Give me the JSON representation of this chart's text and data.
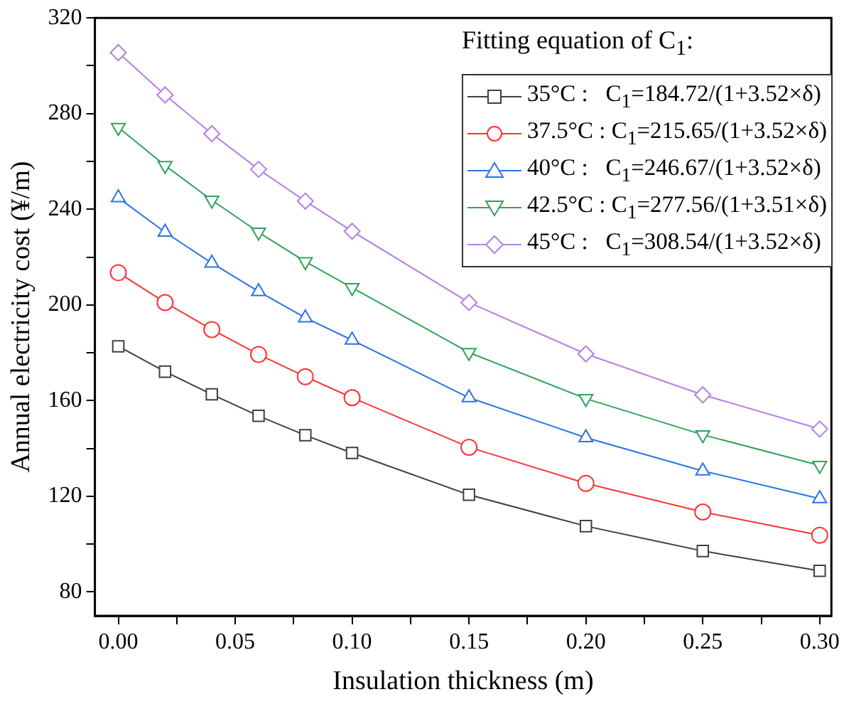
{
  "chart_data": {
    "type": "line",
    "xlabel": "Insulation thickness (m)",
    "ylabel": "Annual electricity cost (¥/m)",
    "legend_title": "Fitting equation of C$_{1}$:",
    "legend": "top right",
    "grid": false,
    "x": [
      0,
      0.02,
      0.04,
      0.06,
      0.08,
      0.1,
      0.15,
      0.2,
      0.25,
      0.3
    ],
    "xlim": [
      -0.01,
      0.305
    ],
    "xticks": [
      {
        "value": 0,
        "label": "0.00"
      },
      {
        "value": 0.025,
        "label": null
      },
      {
        "value": 0.05,
        "label": "0.05"
      },
      {
        "value": 0.075,
        "label": null
      },
      {
        "value": 0.1,
        "label": "0.10"
      },
      {
        "value": 0.125,
        "label": null
      },
      {
        "value": 0.15,
        "label": "0.15"
      },
      {
        "value": 0.175,
        "label": null
      },
      {
        "value": 0.2,
        "label": "0.20"
      },
      {
        "value": 0.225,
        "label": null
      },
      {
        "value": 0.25,
        "label": "0.25"
      },
      {
        "value": 0.275,
        "label": null
      },
      {
        "value": 0.3,
        "label": "0.30"
      }
    ],
    "ylim": [
      70,
      320
    ],
    "yticks": [
      80,
      {
        "value": 100,
        "label": null
      },
      120,
      {
        "value": 140,
        "label": null
      },
      160,
      {
        "value": 180,
        "label": null
      },
      200,
      {
        "value": 220,
        "label": null
      },
      240,
      {
        "value": 260,
        "label": null
      },
      280,
      {
        "value": 300,
        "label": null
      },
      320
    ],
    "series": [
      {
        "name": "35°C :   C$_{1}$=184.72/(1+3.52×δ)",
        "color": "#404040",
        "marker": "square",
        "values": [
          182.7,
          172.1,
          162.6,
          153.6,
          145.5,
          138.1,
          120.6,
          107.5,
          97.1,
          88.8
        ]
      },
      {
        "name": "37.5°C : C$_{1}$=215.65/(1+3.52×δ)",
        "color": "#ff3333",
        "marker": "circle",
        "values": [
          213.5,
          201.0,
          189.7,
          179.3,
          170.0,
          161.2,
          140.5,
          125.4,
          113.4,
          103.7
        ]
      },
      {
        "name": "40°C :   C$_{1}$=246.67/(1+3.52×δ)",
        "color": "#2a74e8",
        "marker": "triangle",
        "values": [
          244.8,
          230.4,
          217.5,
          205.6,
          194.6,
          185.3,
          161.2,
          144.5,
          130.6,
          119.0
        ]
      },
      {
        "name": "42.5°C : C$_{1}$=277.56/(1+3.51×δ)",
        "color": "#2ea35a",
        "marker": "triangle-down",
        "values": [
          274.2,
          258.3,
          243.8,
          230.4,
          218.1,
          207.2,
          180.1,
          160.8,
          145.7,
          132.9
        ]
      },
      {
        "name": "45°C :   C$_{1}$=308.54/(1+3.52×δ)",
        "color": "#b57fe6",
        "marker": "diamond",
        "values": [
          305.5,
          287.8,
          271.6,
          256.7,
          243.4,
          230.8,
          201.0,
          179.5,
          162.4,
          148.1
        ]
      }
    ]
  }
}
